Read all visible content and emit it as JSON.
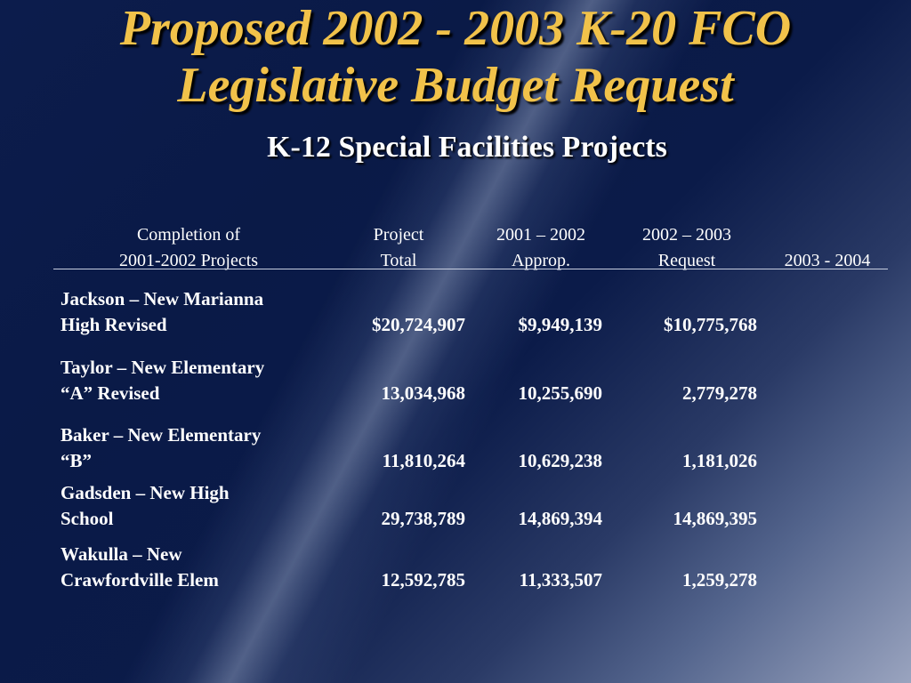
{
  "title": {
    "line1": "Proposed 2002 - 2003 K-20 FCO",
    "line2": "Legislative Budget Request"
  },
  "subtitle": "K-12 Special Facilities Projects",
  "columns": [
    {
      "line1": "Completion of",
      "line2": "2001-2002 Projects"
    },
    {
      "line1": "Project",
      "line2": "Total"
    },
    {
      "line1": "2001 – 2002",
      "line2": "Approp."
    },
    {
      "line1": "2002 – 2003",
      "line2": "Request"
    },
    {
      "line1": "",
      "line2": "2003 - 2004"
    }
  ],
  "rows": [
    {
      "name_line1": "Jackson – New Marianna",
      "name_line2": "High Revised",
      "total": "$20,724,907",
      "approp": "$9,949,139",
      "request": "$10,775,768",
      "next": ""
    },
    {
      "name_line1": "Taylor – New Elementary",
      "name_line2": "“A” Revised",
      "total": "13,034,968",
      "approp": "10,255,690",
      "request": "2,779,278",
      "next": ""
    },
    {
      "name_line1": "Baker – New Elementary",
      "name_line2": "“B”",
      "total": "11,810,264",
      "approp": "10,629,238",
      "request": "1,181,026",
      "next": ""
    },
    {
      "name_line1": "Gadsden – New High",
      "name_line2": "School",
      "total": "29,738,789",
      "approp": "14,869,394",
      "request": "14,869,395",
      "next": ""
    },
    {
      "name_line1": "Wakulla – New",
      "name_line2": "Crawfordville Elem",
      "total": "12,592,785",
      "approp": "11,333,507",
      "request": "1,259,278",
      "next": ""
    }
  ]
}
